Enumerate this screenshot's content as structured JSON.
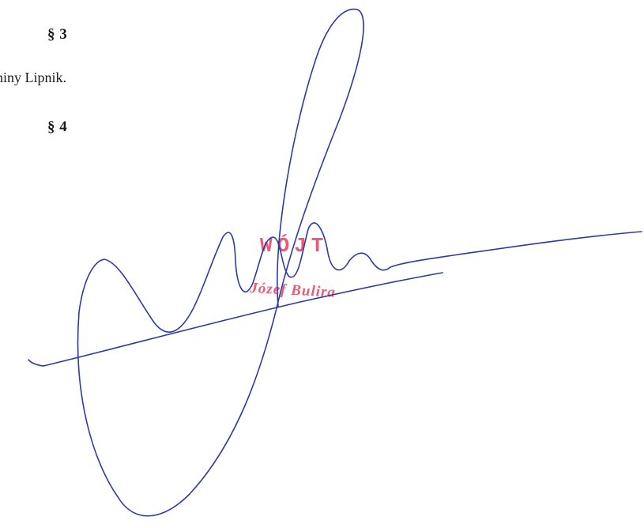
{
  "document": {
    "section3_heading": "§ 3",
    "section3_text": "niny Lipnik.",
    "section4_heading": "§ 4"
  },
  "stamp": {
    "title": "WÓJT",
    "name": "Józef Bulira",
    "color": "#e8496a"
  },
  "signature": {
    "ink_color": "#2e3a9e"
  }
}
